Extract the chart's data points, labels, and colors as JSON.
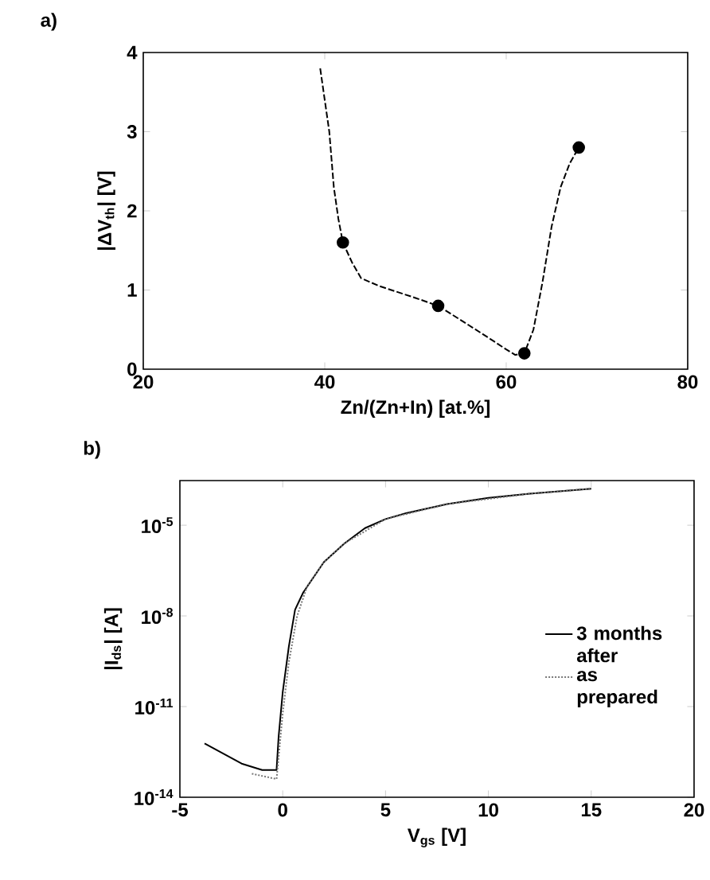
{
  "chart_data": [
    {
      "type": "line",
      "title": "a)",
      "xlabel": "Zn/(Zn+In)  [at.%]",
      "ylabel": "|ΔV$_{th}$| [V]",
      "xlim": [
        20,
        80
      ],
      "ylim": [
        0,
        4
      ],
      "xticks": [
        20,
        40,
        60,
        80
      ],
      "yticks": [
        0,
        1,
        2,
        3,
        4
      ],
      "series": [
        {
          "type": "line",
          "color": "#000000",
          "line_style": "dashed",
          "marker": "none",
          "x": [
            39.5,
            40.5,
            41,
            41.5,
            42,
            43,
            44,
            46,
            50,
            52.5,
            55,
            58,
            60,
            61,
            62,
            63,
            64,
            65,
            66,
            67,
            68
          ],
          "values": [
            3.8,
            3.0,
            2.3,
            1.9,
            1.6,
            1.35,
            1.15,
            1.05,
            0.9,
            0.8,
            0.62,
            0.4,
            0.25,
            0.18,
            0.2,
            0.5,
            1.1,
            1.8,
            2.3,
            2.6,
            2.8
          ]
        },
        {
          "type": "scatter",
          "color": "#000000",
          "marker": "circle",
          "x": [
            42,
            52.5,
            62,
            68
          ],
          "values": [
            1.6,
            0.8,
            0.2,
            2.8
          ]
        }
      ]
    },
    {
      "type": "line",
      "title": "b)",
      "xlabel": "V$_{gs}$ [V]",
      "ylabel": "|I$_{ds}$| [A]",
      "log": "y",
      "xlim": [
        -5,
        20
      ],
      "ylim": [
        1e-14,
        0.0003
      ],
      "xticks": [
        -5,
        0,
        5,
        10,
        15,
        20
      ],
      "yticks": [
        {
          "value": 1e-14,
          "label": "10$^{-14}$"
        },
        {
          "value": 1e-11,
          "label": "10$^{-11}$"
        },
        {
          "value": 1e-08,
          "label": "10$^{-8}$"
        },
        {
          "value": 1e-05,
          "label": "10$^{-5}$"
        }
      ],
      "legend": "right",
      "series": [
        {
          "name": "3 months after",
          "color": "#000000",
          "line_style": "solid",
          "x": [
            -3.8,
            -2,
            -1,
            -0.3,
            -0.2,
            0,
            0.3,
            0.6,
            1,
            2,
            3,
            4,
            5,
            6,
            8,
            10,
            12,
            15
          ],
          "values": [
            6e-13,
            1.3e-13,
            8e-14,
            8e-14,
            1e-12,
            3e-11,
            1e-09,
            1.6e-08,
            6e-08,
            6e-07,
            2.5e-06,
            8e-06,
            1.6e-05,
            2.5e-05,
            5e-05,
            8e-05,
            0.00011,
            0.00016
          ]
        },
        {
          "name": "as prepared",
          "color": "#777777",
          "line_style": "dotted",
          "x": [
            -1.5,
            -0.3,
            0,
            0.3,
            0.7,
            1.2,
            2,
            3,
            5,
            8,
            12,
            15
          ],
          "values": [
            6e-14,
            4e-14,
            6e-12,
            3e-10,
            1e-08,
            1e-07,
            6e-07,
            2.5e-06,
            1.6e-05,
            5e-05,
            0.00011,
            0.00016
          ]
        }
      ]
    }
  ]
}
